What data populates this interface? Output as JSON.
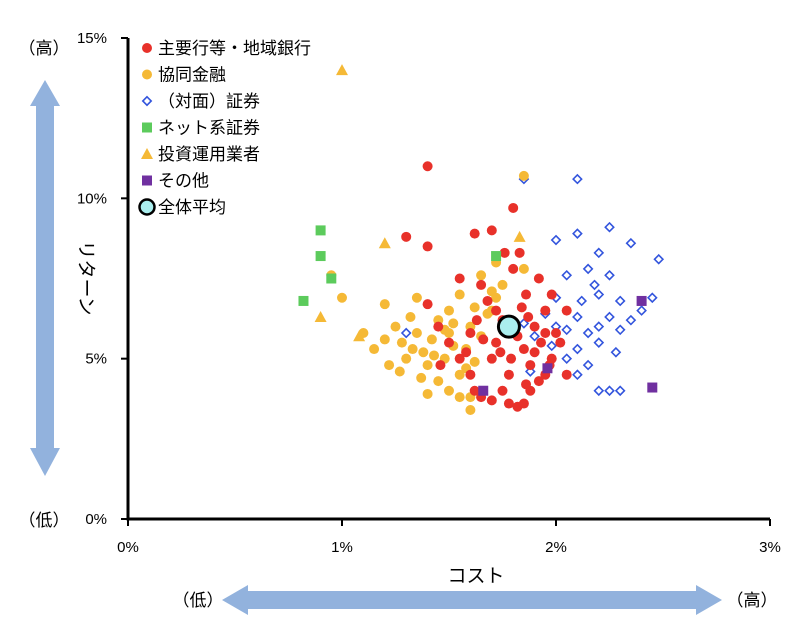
{
  "chart_data": {
    "type": "scatter",
    "xlabel": "コスト",
    "ylabel": "リターン",
    "xlim": [
      0,
      3
    ],
    "ylim": [
      0,
      15
    ],
    "x_ticks": [
      "0%",
      "1%",
      "2%",
      "3%"
    ],
    "y_ticks": [
      "0%",
      "5%",
      "10%",
      "15%"
    ],
    "y_high_label": "（高）",
    "y_low_label": "（低）",
    "x_low_label": "（低）",
    "x_high_label": "（高）",
    "legend_position": "top-left",
    "series": [
      {
        "name": "主要行等・地域銀行",
        "marker": "circle",
        "color": "#e8312a",
        "points": [
          [
            1.4,
            11.0
          ],
          [
            1.8,
            9.7
          ],
          [
            1.3,
            8.8
          ],
          [
            1.4,
            8.5
          ],
          [
            1.62,
            8.9
          ],
          [
            1.7,
            9.0
          ],
          [
            1.76,
            8.3
          ],
          [
            1.83,
            8.3
          ],
          [
            1.8,
            7.8
          ],
          [
            1.55,
            7.5
          ],
          [
            1.65,
            7.3
          ],
          [
            1.92,
            7.5
          ],
          [
            1.98,
            7.0
          ],
          [
            2.05,
            6.5
          ],
          [
            1.86,
            7.0
          ],
          [
            1.95,
            6.5
          ],
          [
            1.4,
            6.7
          ],
          [
            1.45,
            6.0
          ],
          [
            1.5,
            5.5
          ],
          [
            1.55,
            5.0
          ],
          [
            1.6,
            4.5
          ],
          [
            1.62,
            4.0
          ],
          [
            1.65,
            3.8
          ],
          [
            1.7,
            3.7
          ],
          [
            1.75,
            4.0
          ],
          [
            1.78,
            3.6
          ],
          [
            1.82,
            3.5
          ],
          [
            1.85,
            3.6
          ],
          [
            1.88,
            4.0
          ],
          [
            1.92,
            4.3
          ],
          [
            1.95,
            4.5
          ],
          [
            1.98,
            5.0
          ],
          [
            2.02,
            5.5
          ],
          [
            2.05,
            4.5
          ],
          [
            1.7,
            5.0
          ],
          [
            1.72,
            5.5
          ],
          [
            1.75,
            6.2
          ],
          [
            1.8,
            6.0
          ],
          [
            1.82,
            5.7
          ],
          [
            1.85,
            5.3
          ],
          [
            1.87,
            6.3
          ],
          [
            1.9,
            6.0
          ],
          [
            1.93,
            5.5
          ],
          [
            1.95,
            5.8
          ],
          [
            2.0,
            5.8
          ],
          [
            1.68,
            6.8
          ],
          [
            1.72,
            6.5
          ],
          [
            1.6,
            5.8
          ],
          [
            1.88,
            4.8
          ],
          [
            1.78,
            4.5
          ],
          [
            1.74,
            5.2
          ],
          [
            1.66,
            5.6
          ],
          [
            1.84,
            6.6
          ],
          [
            1.9,
            5.2
          ],
          [
            1.97,
            4.8
          ],
          [
            1.63,
            6.2
          ],
          [
            1.58,
            5.2
          ],
          [
            1.46,
            4.8
          ],
          [
            1.79,
            5.0
          ],
          [
            1.86,
            4.2
          ]
        ]
      },
      {
        "name": "協同金融",
        "marker": "circle",
        "color": "#f5b936",
        "points": [
          [
            1.85,
            10.7
          ],
          [
            0.95,
            7.6
          ],
          [
            1.0,
            6.9
          ],
          [
            1.1,
            5.8
          ],
          [
            1.15,
            5.3
          ],
          [
            1.2,
            5.6
          ],
          [
            1.22,
            4.8
          ],
          [
            1.25,
            6.0
          ],
          [
            1.28,
            5.5
          ],
          [
            1.3,
            5.0
          ],
          [
            1.32,
            6.3
          ],
          [
            1.35,
            5.8
          ],
          [
            1.38,
            5.2
          ],
          [
            1.4,
            4.8
          ],
          [
            1.42,
            5.6
          ],
          [
            1.45,
            6.2
          ],
          [
            1.48,
            5.0
          ],
          [
            1.5,
            5.8
          ],
          [
            1.52,
            6.1
          ],
          [
            1.55,
            4.5
          ],
          [
            1.58,
            5.3
          ],
          [
            1.6,
            6.0
          ],
          [
            1.62,
            4.9
          ],
          [
            1.65,
            5.7
          ],
          [
            1.68,
            6.4
          ],
          [
            1.7,
            7.1
          ],
          [
            1.72,
            6.9
          ],
          [
            1.75,
            7.3
          ],
          [
            1.78,
            6.0
          ],
          [
            1.85,
            7.8
          ],
          [
            1.7,
            6.5
          ],
          [
            1.6,
            3.4
          ],
          [
            1.6,
            3.8
          ],
          [
            1.4,
            3.9
          ],
          [
            1.45,
            4.3
          ],
          [
            1.5,
            4.0
          ],
          [
            1.55,
            3.8
          ],
          [
            1.2,
            6.7
          ],
          [
            1.35,
            6.9
          ],
          [
            1.5,
            6.5
          ],
          [
            1.55,
            7.0
          ],
          [
            1.65,
            7.6
          ],
          [
            1.72,
            8.0
          ],
          [
            1.52,
            5.4
          ],
          [
            1.48,
            5.9
          ],
          [
            1.58,
            4.7
          ],
          [
            1.43,
            5.1
          ],
          [
            1.37,
            4.4
          ],
          [
            1.62,
            6.6
          ],
          [
            1.33,
            5.3
          ],
          [
            1.27,
            4.6
          ]
        ]
      },
      {
        "name": "（対面）証券",
        "marker": "diamond",
        "color": "#3355dd",
        "points": [
          [
            1.85,
            10.6
          ],
          [
            2.1,
            10.6
          ],
          [
            2.25,
            9.1
          ],
          [
            2.35,
            8.6
          ],
          [
            2.48,
            8.1
          ],
          [
            2.2,
            8.3
          ],
          [
            2.25,
            7.6
          ],
          [
            2.15,
            7.8
          ],
          [
            2.05,
            7.6
          ],
          [
            2.0,
            8.7
          ],
          [
            2.1,
            8.9
          ],
          [
            2.2,
            7.0
          ],
          [
            2.3,
            6.8
          ],
          [
            2.4,
            6.5
          ],
          [
            2.45,
            6.9
          ],
          [
            2.35,
            6.2
          ],
          [
            2.3,
            5.9
          ],
          [
            2.25,
            6.3
          ],
          [
            2.2,
            5.5
          ],
          [
            2.15,
            5.8
          ],
          [
            2.1,
            6.3
          ],
          [
            2.05,
            5.9
          ],
          [
            2.0,
            6.0
          ],
          [
            2.0,
            6.9
          ],
          [
            1.95,
            6.4
          ],
          [
            1.9,
            5.7
          ],
          [
            1.85,
            6.1
          ],
          [
            2.05,
            5.0
          ],
          [
            2.1,
            4.5
          ],
          [
            2.15,
            4.8
          ],
          [
            2.2,
            4.0
          ],
          [
            2.25,
            4.0
          ],
          [
            2.3,
            4.0
          ],
          [
            2.1,
            5.3
          ],
          [
            2.2,
            6.0
          ],
          [
            1.3,
            5.8
          ],
          [
            1.88,
            4.6
          ],
          [
            2.18,
            7.3
          ],
          [
            2.28,
            5.2
          ],
          [
            2.12,
            6.8
          ],
          [
            1.98,
            5.4
          ]
        ]
      },
      {
        "name": "ネット系証券",
        "marker": "square",
        "color": "#5ccb5c",
        "points": [
          [
            0.9,
            9.0
          ],
          [
            0.9,
            8.2
          ],
          [
            0.95,
            7.5
          ],
          [
            0.82,
            6.8
          ],
          [
            1.72,
            8.2
          ]
        ]
      },
      {
        "name": "投資運用業者",
        "marker": "triangle",
        "color": "#f5b936",
        "points": [
          [
            1.0,
            14.0
          ],
          [
            1.2,
            8.6
          ],
          [
            1.83,
            8.8
          ],
          [
            0.9,
            6.3
          ],
          [
            1.08,
            5.7
          ]
        ]
      },
      {
        "name": "その他",
        "marker": "square",
        "color": "#7030a0",
        "points": [
          [
            2.4,
            6.8
          ],
          [
            2.45,
            4.1
          ],
          [
            1.66,
            4.0
          ],
          [
            1.96,
            4.7
          ]
        ]
      },
      {
        "name": "全体平均",
        "marker": "big-circle",
        "color": "#aaeeee",
        "points": [
          [
            1.78,
            6.0
          ]
        ]
      }
    ]
  }
}
